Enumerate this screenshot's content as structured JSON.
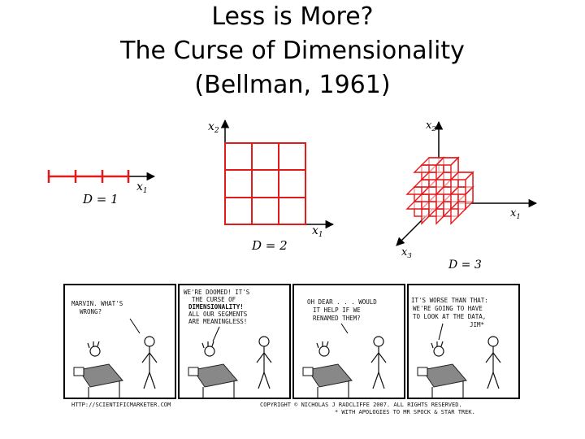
{
  "title": {
    "line1": "Less is More?",
    "line2": "The Curse of Dimensionality",
    "line3": "(Bellman, 1961)"
  },
  "diagram_1d": {
    "axis_label": "x",
    "axis_sub": "1",
    "dim_label": "D = 1"
  },
  "diagram_2d": {
    "y_label": "x",
    "y_sub": "2",
    "x_label": "x",
    "x_sub": "1",
    "dim_label": "D = 2"
  },
  "diagram_3d": {
    "z_label": "x",
    "z_sub": "2",
    "x_label": "x",
    "x_sub": "1",
    "y_label": "x",
    "y_sub": "3",
    "dim_label": "D = 3"
  },
  "colors": {
    "grid": "#e31a1c",
    "axis": "#000000"
  },
  "comic": {
    "panel1": [
      "MARVIN.  WHAT'S",
      "WRONG?"
    ],
    "panel2": [
      "WE'RE DOOMED!  IT'S",
      "THE CURSE OF",
      "DIMENSIONALITY!",
      "ALL OUR SEGMENTS",
      "ARE MEANINGLESS!"
    ],
    "panel3": [
      "OH DEAR . . . WOULD",
      "IT HELP IF WE",
      "RENAMED THEM?"
    ],
    "panel4": [
      "IT'S WORSE THAN THAT:",
      "WE'RE GOING TO HAVE",
      "TO LOOK AT THE DATA,",
      "JIM*"
    ],
    "footer_left": "HTTP://SCIENTIFICMARKETER.COM",
    "footer_right_1": "COPYRIGHT © NICHOLAS J RADCLIFFE 2007.   ALL RIGHTS RESERVED.",
    "footer_right_2": "* WITH APOLOGIES TO MR SPOCK & STAR TREK."
  }
}
